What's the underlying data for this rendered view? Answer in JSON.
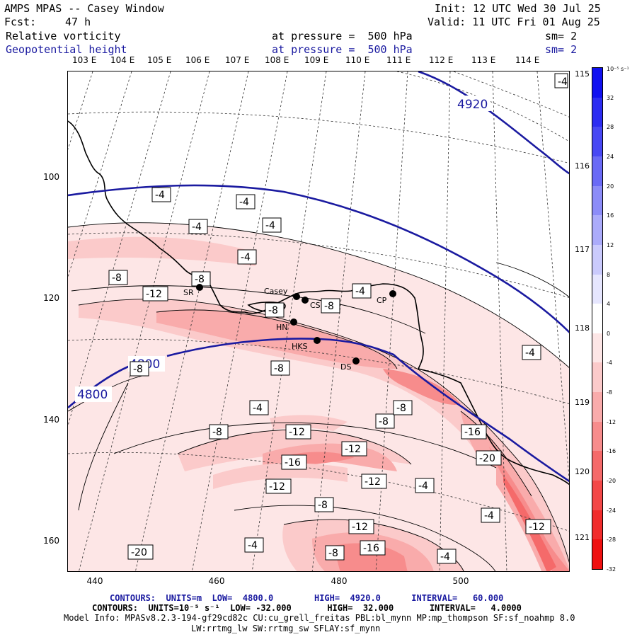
{
  "header": {
    "title": "AMPS MPAS -- Casey Window",
    "init": "Init: 12 UTC Wed 30 Jul 25",
    "fcst_label": "Fcst:",
    "fcst_value": "47 h",
    "valid": "Valid: 11 UTC Fri 01 Aug 25",
    "field1": "Relative vorticity",
    "field1_level": "at pressure =  500 hPa",
    "field1_smooth": "sm= 2",
    "field2": "Geopotential height",
    "field2_level": "at pressure =  500 hPa",
    "field2_smooth": "sm= 2"
  },
  "axes": {
    "y_ticks": [
      "100",
      "120",
      "140",
      "160"
    ],
    "x_ticks": [
      "440",
      "460",
      "480",
      "500"
    ],
    "lon_top": [
      "103 E",
      "104 E",
      "105 E",
      "106 E",
      "107 E",
      "108 E",
      "109 E",
      "110 E",
      "111 E",
      "112 E",
      "113 E",
      "114 E"
    ],
    "lon_right": [
      "115 E",
      "116 E",
      "117 E",
      "118 E",
      "119 E",
      "120 E",
      "121 E"
    ]
  },
  "colorbar": {
    "units": "10⁻⁵ s⁻¹",
    "labels": [
      "32",
      "28",
      "24",
      "20",
      "16",
      "12",
      "8",
      "4",
      "0",
      "-4",
      "-8",
      "-12",
      "-16",
      "-20",
      "-24",
      "-28",
      "-32"
    ],
    "colors": [
      "#1010f0",
      "#2c2cf2",
      "#4848f4",
      "#6a6af6",
      "#8c8cf8",
      "#ababfa",
      "#cacafc",
      "#e6e6fe",
      "#ffffff",
      "#fde6e6",
      "#fbcaca",
      "#f9abab",
      "#f78c8c",
      "#f56a6a",
      "#f34848",
      "#f12c2c",
      "#ef1010"
    ]
  },
  "map": {
    "height_labels": [
      "4920",
      "4800",
      "4800"
    ],
    "vort_labels": [
      "-4",
      "-4",
      "-4",
      "-4",
      "-4",
      "-8",
      "-4",
      "-8",
      "-12",
      "-8",
      "-4",
      "-8",
      "-8",
      "-4",
      "-8",
      "-4",
      "-8",
      "-12",
      "-8",
      "-16",
      "-12",
      "-20",
      "-16",
      "-4",
      "-12",
      "-12",
      "-8",
      "-12",
      "-4",
      "-20",
      "-16",
      "-8",
      "-4",
      "-12",
      "-4",
      "-8"
    ],
    "stations": [
      "Casey",
      "CS",
      "SR",
      "HN",
      "HKS",
      "DS",
      "CP"
    ]
  },
  "footer": {
    "line1_label": "CONTOURS:  UNITS=m  LOW=  4800.0        HIGH=  4920.0      INTERVAL=   60.000",
    "line2_label": "CONTOURS:  UNITS=10⁻⁵ s⁻¹  LOW= -32.000       HIGH=  32.000       INTERVAL=   4.0000",
    "line3": "Model Info: MPASv8.2.3-194-gf29cd82c CU:cu_grell_freitas PBL:bl_mynn MP:mp_thompson SF:sf_noahmp 8.0",
    "line4": "LW:rrtmg_lw SW:rrtmg_sw SFLAY:sf_mynn"
  },
  "colors": {
    "height_contour": "#1a1aa0",
    "coast": "#000000",
    "light_pink": "#fde6e6",
    "mid_pink": "#fbcaca",
    "pink": "#f9abab",
    "deep_pink": "#f78c8c",
    "red": "#f56a6a"
  }
}
